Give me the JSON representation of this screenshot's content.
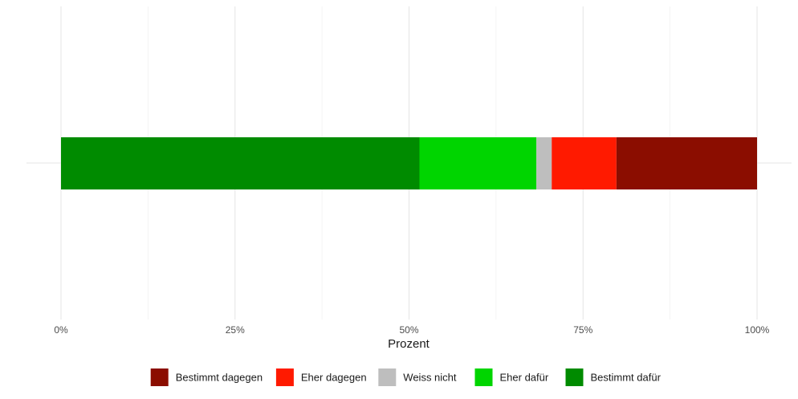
{
  "chart_data": {
    "type": "bar",
    "orientation": "horizontal",
    "stacked": true,
    "title": "",
    "xlabel": "Prozent",
    "ylabel": "",
    "xlim": [
      0,
      1
    ],
    "x_ticks": [
      0,
      0.25,
      0.5,
      0.75,
      1.0
    ],
    "x_tick_labels": [
      "0%",
      "25%",
      "50%",
      "75%",
      "100%"
    ],
    "grid": true,
    "legend_position": "bottom",
    "legend_order": [
      "Bestimmt dagegen",
      "Eher dagegen",
      "Weiss nicht",
      "Eher dafür",
      "Bestimmt dafür"
    ],
    "series": [
      {
        "name": "Bestimmt dafür",
        "value": 0.515,
        "color": "#008B00"
      },
      {
        "name": "Eher dafür",
        "value": 0.168,
        "color": "#00D500"
      },
      {
        "name": "Weiss nicht",
        "value": 0.022,
        "color": "#BEBEBE"
      },
      {
        "name": "Eher dagegen",
        "value": 0.093,
        "color": "#FF1A00"
      },
      {
        "name": "Bestimmt dagegen",
        "value": 0.202,
        "color": "#8B0D00"
      }
    ]
  }
}
